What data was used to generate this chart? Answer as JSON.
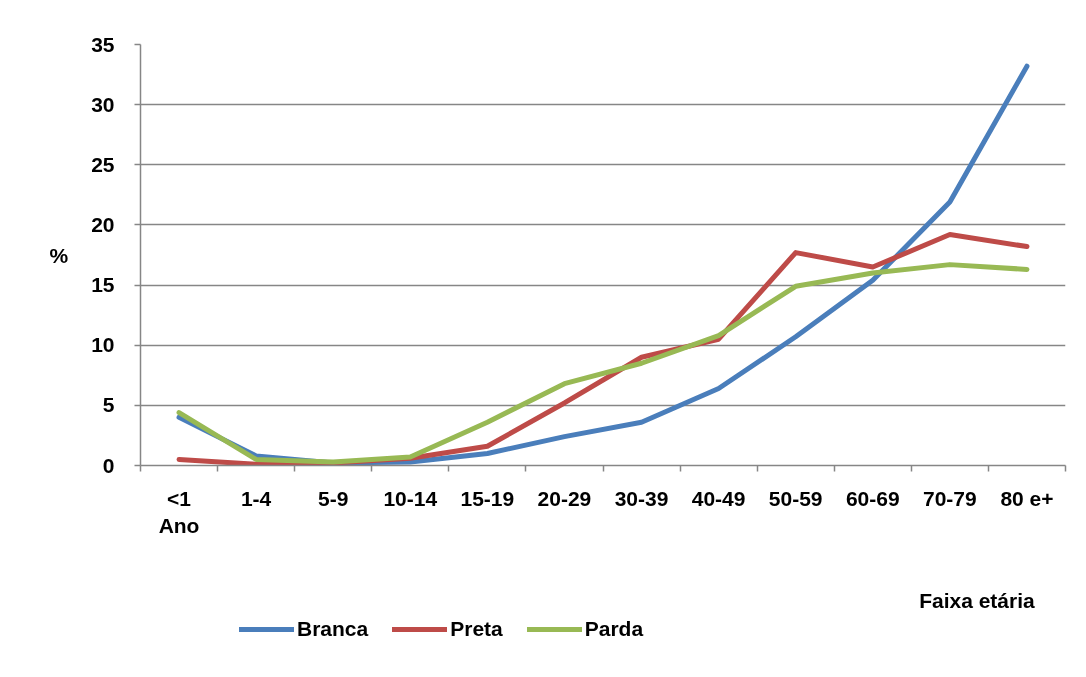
{
  "chart_data": {
    "type": "line",
    "ylabel": "%",
    "xlabel": "Faixa etária",
    "categories": [
      "<1 Ano",
      "1-4",
      "5-9",
      "10-14",
      "15-19",
      "20-29",
      "30-39",
      "40-49",
      "50-59",
      "60-69",
      "70-79",
      "80 e+"
    ],
    "series": [
      {
        "name": "Branca",
        "color": "#4a7ebb",
        "values": [
          4.0,
          0.8,
          0.2,
          0.3,
          1.0,
          2.4,
          3.6,
          6.4,
          10.7,
          15.4,
          21.9,
          33.2
        ]
      },
      {
        "name": "Preta",
        "color": "#be4b48",
        "values": [
          0.5,
          0.1,
          0.2,
          0.6,
          1.6,
          5.2,
          9.0,
          10.5,
          17.7,
          16.5,
          19.2,
          18.2
        ]
      },
      {
        "name": "Parda",
        "color": "#98b954",
        "values": [
          4.4,
          0.5,
          0.3,
          0.7,
          3.6,
          6.8,
          8.5,
          10.8,
          14.9,
          16.0,
          16.7,
          16.3
        ]
      }
    ],
    "ylim": [
      0,
      35
    ],
    "yticks": [
      0,
      5,
      10,
      15,
      20,
      25,
      30,
      35
    ],
    "grid": "y",
    "legend": "bottom",
    "line_style": "solid"
  }
}
